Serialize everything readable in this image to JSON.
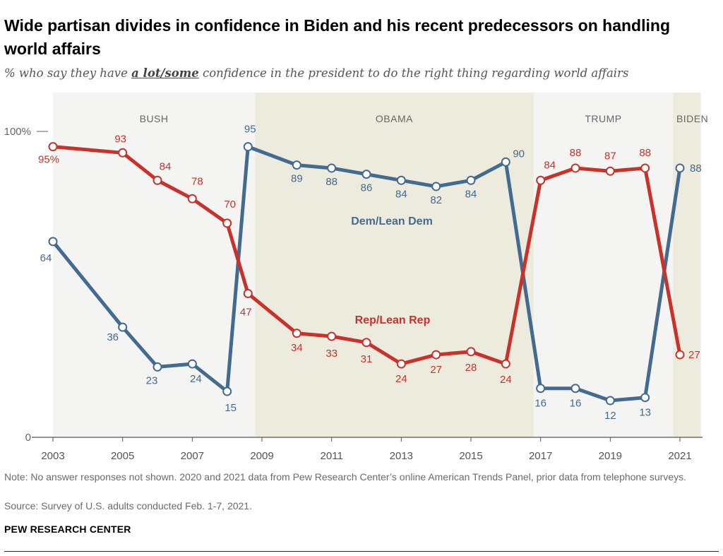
{
  "title": "Wide partisan divides in confidence in Biden and his recent predecessors on handling world affairs",
  "subtitle": {
    "before": "% who say they have ",
    "emphasis": "a lot/some",
    "after": " confidence in the president to do the right thing regarding world affairs"
  },
  "note": "Note: No answer responses not shown. 2020 and 2021 data from Pew Research Center’s online American Trends Panel, prior data from telephone surveys.",
  "source": "Source: Survey of U.S. adults conducted Feb. 1-7, 2021.",
  "brand": "PEW RESEARCH CENTER",
  "colors": {
    "dem": "#436a8f",
    "rep": "#c8322a",
    "shade": "#ecebde",
    "light": "#f4f4f3"
  },
  "chart_data": {
    "type": "line",
    "title": "Wide partisan divides in confidence in Biden and his recent predecessors on handling world affairs",
    "ylim": [
      0,
      100
    ],
    "xlim": [
      2003,
      2021.6
    ],
    "y_ticks": [
      {
        "value": 100,
        "label": "100%"
      },
      {
        "value": 0,
        "label": "0"
      }
    ],
    "x_ticks": [
      2003,
      2005,
      2007,
      2009,
      2011,
      2013,
      2015,
      2017,
      2019,
      2021
    ],
    "presidencies": [
      {
        "name": "BUSH",
        "from": 2003,
        "to": 2008.8,
        "shade": "light"
      },
      {
        "name": "OBAMA",
        "from": 2008.8,
        "to": 2016.8,
        "shade": "dark"
      },
      {
        "name": "TRUMP",
        "from": 2016.8,
        "to": 2020.8,
        "shade": "light"
      },
      {
        "name": "BIDEN",
        "from": 2020.8,
        "to": 2021.6,
        "shade": "dark"
      }
    ],
    "x": [
      2003.0,
      2005.0,
      2006.0,
      2007.0,
      2008.0,
      2008.6,
      2010.0,
      2011.0,
      2012.0,
      2013.0,
      2014.0,
      2015.0,
      2016.0,
      2017.0,
      2018.0,
      2019.0,
      2020.0,
      2021.0
    ],
    "series": [
      {
        "name": "Dem/Lean Dem",
        "color": "#436a8f",
        "values": [
          64,
          36,
          23,
          24,
          15,
          95,
          89,
          88,
          86,
          84,
          82,
          84,
          90,
          16,
          16,
          12,
          13,
          88
        ],
        "labels": [
          "64",
          "36",
          "23",
          "24",
          "15",
          "95",
          "89",
          "88",
          "86",
          "84",
          "82",
          "84",
          "90",
          "16",
          "16",
          "12",
          "13",
          "88"
        ]
      },
      {
        "name": "Rep/Lean Rep",
        "color": "#c8322a",
        "values": [
          95,
          93,
          84,
          78,
          70,
          47,
          34,
          33,
          31,
          24,
          27,
          28,
          24,
          84,
          88,
          87,
          88,
          27
        ],
        "labels": [
          "95%",
          "93",
          "84",
          "78",
          "70",
          "47",
          "34",
          "33",
          "31",
          "24",
          "27",
          "28",
          "24",
          "84",
          "88",
          "87",
          "88",
          "27"
        ]
      }
    ]
  }
}
